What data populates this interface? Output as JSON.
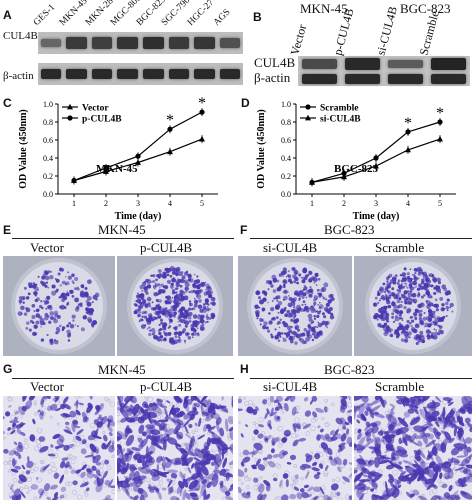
{
  "panelA": {
    "label": "A",
    "lanes": [
      "GES-1",
      "MKN-45",
      "MKN-28",
      "MGC-803",
      "BGC-823",
      "SGC-7901",
      "HGC-27",
      "AGS"
    ],
    "rows": [
      "CUL4B",
      "β-actin"
    ],
    "cul4b_intensity": [
      0.35,
      0.75,
      0.7,
      0.8,
      0.85,
      0.75,
      0.78,
      0.55
    ],
    "actin_intensity": [
      0.9,
      0.9,
      0.9,
      0.9,
      0.9,
      0.9,
      0.9,
      0.9
    ]
  },
  "panelB": {
    "label": "B",
    "groups": [
      "MKN-45",
      "BGC-823"
    ],
    "lanes": [
      "Vector",
      "p-CUL4B",
      "si-CUL4B",
      "Scramble"
    ],
    "rows": [
      "CUL4B",
      "β-actin"
    ],
    "cul4b_intensity": [
      0.6,
      0.9,
      0.45,
      0.95
    ],
    "actin_intensity": [
      0.9,
      0.9,
      0.9,
      0.9
    ]
  },
  "chart_data": [
    {
      "type": "line",
      "panel": "C",
      "annotation": "MKN-45",
      "xlabel": "Time (day)",
      "ylabel": "OD Value (450nm)",
      "x": [
        1,
        2,
        3,
        4,
        5
      ],
      "xlim": [
        0.5,
        5.5
      ],
      "ylim": [
        0.0,
        1.0
      ],
      "yticks": [
        "0.0",
        "0.2",
        "0.4",
        "0.6",
        "0.8",
        "1.0"
      ],
      "legend_placement": "top-left",
      "significance": [
        {
          "x": 4,
          "label": "*"
        },
        {
          "x": 5,
          "label": "*"
        }
      ],
      "series": [
        {
          "name": "Vector",
          "values": [
            0.15,
            0.25,
            0.35,
            0.47,
            0.61
          ],
          "marker": "triangle"
        },
        {
          "name": "p-CUL4B",
          "values": [
            0.15,
            0.29,
            0.42,
            0.72,
            0.91
          ],
          "marker": "circle"
        }
      ]
    },
    {
      "type": "line",
      "panel": "D",
      "annotation": "BGC-823",
      "xlabel": "Time (day)",
      "ylabel": "OD Value (450nm)",
      "x": [
        1,
        2,
        3,
        4,
        5
      ],
      "xlim": [
        0.5,
        5.5
      ],
      "ylim": [
        0.0,
        1.0
      ],
      "yticks": [
        "0.0",
        "0.2",
        "0.4",
        "0.6",
        "0.8",
        "1.0"
      ],
      "legend_placement": "top-left",
      "significance": [
        {
          "x": 4,
          "label": "*"
        },
        {
          "x": 5,
          "label": "*"
        }
      ],
      "series": [
        {
          "name": "Scramble",
          "values": [
            0.13,
            0.23,
            0.4,
            0.69,
            0.8
          ],
          "marker": "circle"
        },
        {
          "name": "si-CUL4B",
          "values": [
            0.13,
            0.19,
            0.31,
            0.49,
            0.61
          ],
          "marker": "triangle"
        }
      ]
    }
  ],
  "panelE": {
    "label": "E",
    "title": "MKN-45",
    "left": "Vector",
    "right": "p-CUL4B"
  },
  "panelF": {
    "label": "F",
    "title": "BGC-823",
    "left": "si-CUL4B",
    "right": "Scramble"
  },
  "panelG": {
    "label": "G",
    "title": "MKN-45",
    "left": "Vector",
    "right": "p-CUL4B"
  },
  "panelH": {
    "label": "H",
    "title": "BGC-823",
    "left": "si-CUL4B",
    "right": "Scramble"
  },
  "colors": {
    "stain": "#4a36b0",
    "dish_bg": "#d8dbe6",
    "rim": "#bfc3d0",
    "band": "#151515"
  },
  "density": {
    "colony": {
      "E_left": 0.25,
      "E_right": 0.75,
      "F_left": 0.5,
      "F_right": 0.7
    },
    "invasion": {
      "G_left": 0.3,
      "G_right": 0.75,
      "H_left": 0.25,
      "H_right": 0.8
    }
  }
}
